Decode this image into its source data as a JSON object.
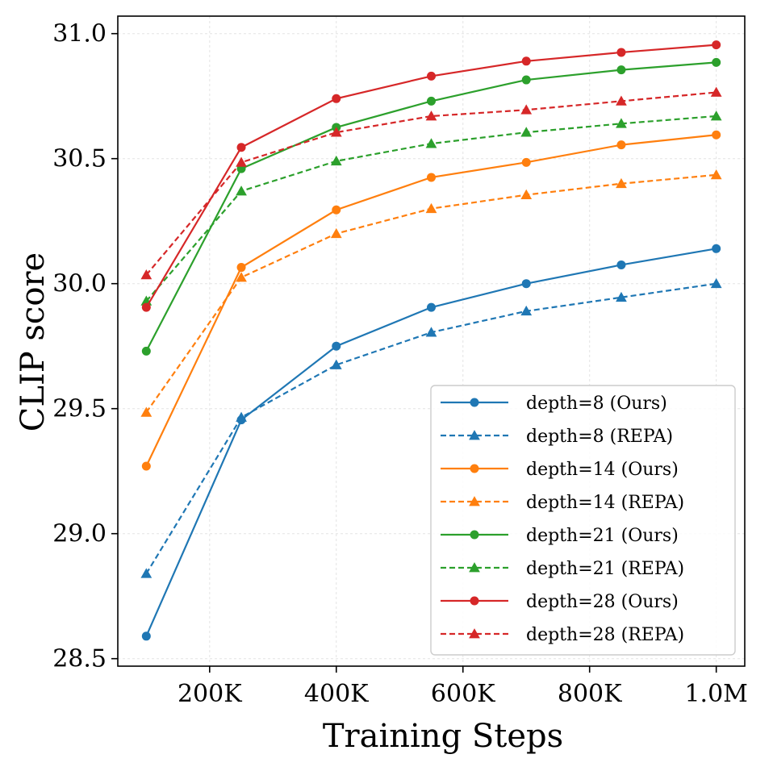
{
  "chart_data": {
    "type": "line",
    "title": "",
    "xlabel": "Training Steps",
    "ylabel": "CLIP score",
    "x": [
      100000,
      250000,
      400000,
      550000,
      700000,
      850000,
      1000000
    ],
    "xlim": [
      55000,
      1045000
    ],
    "ylim": [
      28.47,
      31.07
    ],
    "x_ticks": [
      {
        "value": 200000,
        "label": "200K"
      },
      {
        "value": 400000,
        "label": "400K"
      },
      {
        "value": 600000,
        "label": "600K"
      },
      {
        "value": 800000,
        "label": "800K"
      },
      {
        "value": 1000000,
        "label": "1.0M"
      }
    ],
    "y_ticks": [
      {
        "value": 28.5,
        "label": "28.5"
      },
      {
        "value": 29.0,
        "label": "29.0"
      },
      {
        "value": 29.5,
        "label": "29.5"
      },
      {
        "value": 30.0,
        "label": "30.0"
      },
      {
        "value": 30.5,
        "label": "30.5"
      },
      {
        "value": 31.0,
        "label": "31.0"
      }
    ],
    "grid": true,
    "legend_position": "lower-right",
    "series": [
      {
        "name": "depth=8 (Ours)",
        "color": "#1f77b4",
        "style": "solid",
        "marker": "circle",
        "values": [
          28.59,
          29.455,
          29.75,
          29.905,
          30.0,
          30.075,
          30.14
        ]
      },
      {
        "name": "depth=8 (REPA)",
        "color": "#1f77b4",
        "style": "dashed",
        "marker": "triangle",
        "values": [
          28.84,
          29.465,
          29.675,
          29.805,
          29.89,
          29.945,
          30.0
        ]
      },
      {
        "name": "depth=14 (Ours)",
        "color": "#ff7f0e",
        "style": "solid",
        "marker": "circle",
        "values": [
          29.27,
          30.065,
          30.295,
          30.425,
          30.485,
          30.555,
          30.595
        ]
      },
      {
        "name": "depth=14 (REPA)",
        "color": "#ff7f0e",
        "style": "dashed",
        "marker": "triangle",
        "values": [
          29.485,
          30.025,
          30.2,
          30.3,
          30.355,
          30.4,
          30.435
        ]
      },
      {
        "name": "depth=21 (Ours)",
        "color": "#2ca02c",
        "style": "solid",
        "marker": "circle",
        "values": [
          29.73,
          30.46,
          30.625,
          30.73,
          30.815,
          30.855,
          30.885
        ]
      },
      {
        "name": "depth=21 (REPA)",
        "color": "#2ca02c",
        "style": "dashed",
        "marker": "triangle",
        "values": [
          29.93,
          30.37,
          30.49,
          30.56,
          30.605,
          30.64,
          30.67
        ]
      },
      {
        "name": "depth=28 (Ours)",
        "color": "#d62728",
        "style": "solid",
        "marker": "circle",
        "values": [
          29.905,
          30.545,
          30.74,
          30.83,
          30.89,
          30.925,
          30.955
        ]
      },
      {
        "name": "depth=28 (REPA)",
        "color": "#d62728",
        "style": "dashed",
        "marker": "triangle",
        "values": [
          30.035,
          30.485,
          30.605,
          30.67,
          30.695,
          30.73,
          30.765
        ]
      }
    ]
  }
}
